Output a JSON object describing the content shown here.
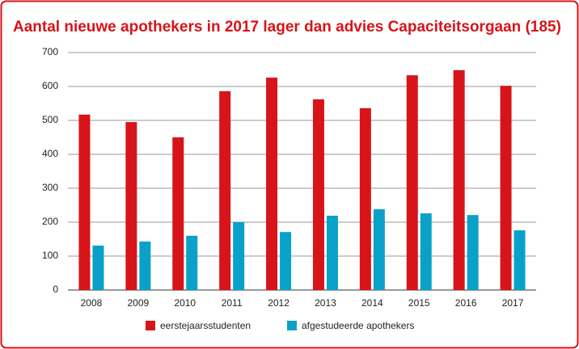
{
  "chart_data": {
    "type": "bar",
    "title": "Aantal nieuwe apothekers in 2017 lager dan advies Capaciteitsorgaan (185)",
    "categories": [
      "2008",
      "2009",
      "2010",
      "2011",
      "2012",
      "2013",
      "2014",
      "2015",
      "2016",
      "2017"
    ],
    "series": [
      {
        "name": "eerstejaarsstudenten",
        "color": "#d7141a",
        "values": [
          517,
          495,
          450,
          586,
          626,
          562,
          536,
          633,
          648,
          602
        ]
      },
      {
        "name": "afgestudeerde apothekers",
        "color": "#0aa1c8",
        "values": [
          131,
          143,
          160,
          200,
          171,
          219,
          238,
          226,
          221,
          176
        ]
      }
    ],
    "ylim": [
      0,
      700
    ],
    "yticks": [
      0,
      100,
      200,
      300,
      400,
      500,
      600,
      700
    ],
    "grid": true,
    "legend": "bottom"
  }
}
